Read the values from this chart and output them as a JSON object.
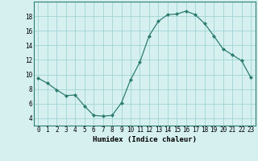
{
  "x": [
    0,
    1,
    2,
    3,
    4,
    5,
    6,
    7,
    8,
    9,
    10,
    11,
    12,
    13,
    14,
    15,
    16,
    17,
    18,
    19,
    20,
    21,
    22,
    23
  ],
  "y": [
    9.5,
    8.8,
    7.9,
    7.1,
    7.2,
    5.7,
    4.4,
    4.3,
    4.4,
    6.1,
    9.3,
    11.7,
    15.3,
    17.3,
    18.2,
    18.3,
    18.7,
    18.2,
    17.0,
    15.3,
    13.5,
    12.7,
    11.9,
    9.6
  ],
  "line_color": "#2d7d6e",
  "marker": "D",
  "marker_size": 2.0,
  "bg_color": "#d6f0f0",
  "grid_color": "#a0d4d4",
  "xlabel": "Humidex (Indice chaleur)",
  "xlim": [
    -0.5,
    23.5
  ],
  "ylim": [
    3,
    20
  ],
  "yticks": [
    4,
    6,
    8,
    10,
    12,
    14,
    16,
    18
  ],
  "xticks": [
    0,
    1,
    2,
    3,
    4,
    5,
    6,
    7,
    8,
    9,
    10,
    11,
    12,
    13,
    14,
    15,
    16,
    17,
    18,
    19,
    20,
    21,
    22,
    23
  ],
  "font_size_tick": 5.5,
  "font_size_label": 6.5
}
